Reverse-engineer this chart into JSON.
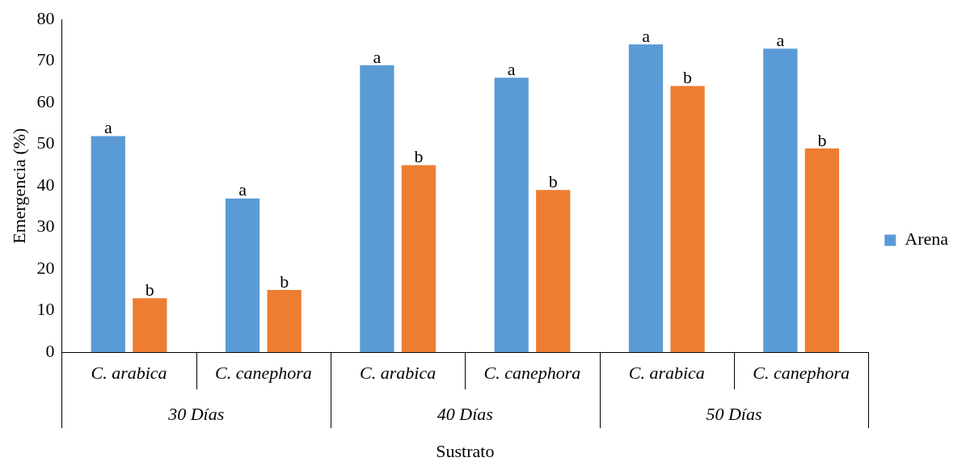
{
  "chart_data": {
    "type": "bar",
    "xlabel": "Sustrato",
    "ylabel": "Emergencia (%)",
    "categories": [
      "C. arabica",
      "C. canephora",
      "C. arabica",
      "C. canephora",
      "C. arabica",
      "C. canephora"
    ],
    "annotations": [
      "30 Días",
      "40 Días",
      "50 Días"
    ],
    "series": [
      {
        "name": "Arena",
        "color": "#5b9bd5",
        "values": [
          52,
          37,
          69,
          66,
          74,
          73
        ],
        "value_labels": [
          "a",
          "a",
          "a",
          "a",
          "a",
          "a"
        ]
      },
      {
        "color": "#ed7d31",
        "values": [
          13,
          15,
          45,
          39,
          64,
          49
        ],
        "value_labels": [
          "b",
          "b",
          "b",
          "b",
          "b",
          "b"
        ]
      }
    ],
    "ylim": [
      0,
      80
    ],
    "yticks": [
      0,
      10,
      20,
      30,
      40,
      50,
      60,
      70,
      80
    ],
    "grid": false,
    "legend": "right"
  }
}
